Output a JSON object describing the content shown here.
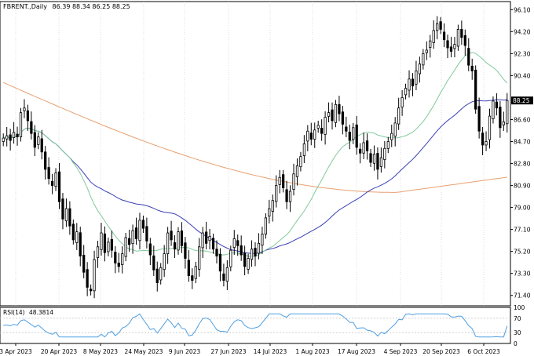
{
  "header": {
    "symbol": "FBRENT.,Daily",
    "ohlc": "86.39 88.34 86.25 88.25"
  },
  "rsi": {
    "label": "RSI(14)",
    "value": "48.3814",
    "ticks": [
      "100",
      "70",
      "30",
      "0"
    ]
  },
  "colors": {
    "candle": "#000000",
    "ma_fast": "#7fc99a",
    "ma_mid": "#3a3fb5",
    "ma_slow": "#e8a070",
    "rsi_line": "#4f9fe0",
    "grid": "#c8c8c8"
  },
  "chart_data": [
    {
      "type": "candlestick",
      "series_name": "FBRENT.",
      "timeframe": "Daily",
      "ylim": [
        70.5,
        96.8
      ],
      "y_ticks": [
        "96.10",
        "94.20",
        "92.30",
        "90.40",
        "88.25",
        "86.60",
        "84.70",
        "82.80",
        "80.90",
        "79.00",
        "77.10",
        "75.20",
        "73.30",
        "71.40"
      ],
      "last_price": "88.25",
      "x_tick_labels": [
        "3 Apr 2023",
        "20 Apr 2023",
        "8 May 2023",
        "24 May 2023",
        "9 Jun 2023",
        "27 Jun 2023",
        "14 Jul 2023",
        "1 Aug 2023",
        "17 Aug 2023",
        "4 Sep 2023",
        "20 Sep 2023",
        "6 Oct 2023"
      ],
      "candles_close": [
        85.0,
        85.2,
        84.8,
        85.5,
        85.1,
        87.2,
        87.6,
        86.5,
        85.4,
        84.2,
        85.1,
        83.8,
        82.3,
        81.5,
        80.9,
        82.0,
        79.5,
        78.0,
        78.9,
        77.4,
        76.2,
        76.9,
        74.8,
        73.4,
        72.1,
        71.8,
        74.5,
        75.6,
        76.8,
        75.1,
        76.0,
        75.3,
        74.2,
        73.9,
        75.0,
        76.4,
        75.8,
        77.0,
        76.3,
        77.9,
        77.2,
        76.1,
        74.9,
        73.6,
        72.5,
        73.8,
        75.0,
        76.8,
        76.2,
        75.4,
        76.9,
        75.7,
        74.6,
        73.1,
        72.7,
        73.9,
        75.6,
        76.8,
        75.9,
        76.5,
        75.4,
        74.8,
        73.5,
        72.7,
        73.8,
        75.3,
        76.3,
        75.7,
        74.9,
        73.9,
        74.6,
        75.4,
        74.8,
        75.9,
        76.7,
        78.1,
        78.9,
        79.6,
        80.9,
        81.6,
        80.7,
        79.5,
        80.4,
        81.9,
        82.6,
        83.4,
        84.5,
        85.6,
        84.9,
        85.7,
        86.1,
        85.4,
        86.8,
        87.2,
        86.5,
        87.9,
        87.1,
        86.2,
        85.6,
        84.8,
        85.9,
        84.2,
        83.7,
        84.6,
        83.9,
        82.9,
        83.6,
        82.3,
        83.3,
        84.1,
        84.7,
        85.4,
        86.3,
        87.6,
        88.5,
        89.3,
        90.1,
        89.5,
        90.8,
        91.4,
        92.3,
        92.6,
        93.4,
        94.3,
        94.9,
        94.4,
        93.5,
        92.8,
        92.5,
        93.1,
        94.4,
        93.7,
        93.0,
        91.3,
        90.8,
        87.5,
        85.6,
        84.4,
        84.7,
        86.9,
        88.2,
        87.6,
        85.9,
        86.4,
        88.25
      ],
      "series": [
        {
          "name": "",
          "role": "fast moving average"
        },
        {
          "name": "",
          "role": "medium moving average"
        },
        {
          "name": "",
          "role": "slow moving average"
        }
      ]
    },
    {
      "type": "line",
      "indicator": "RSI(14)",
      "ylim": [
        0,
        100
      ],
      "levels": [
        30,
        70
      ],
      "last_value": 48.3814
    }
  ]
}
